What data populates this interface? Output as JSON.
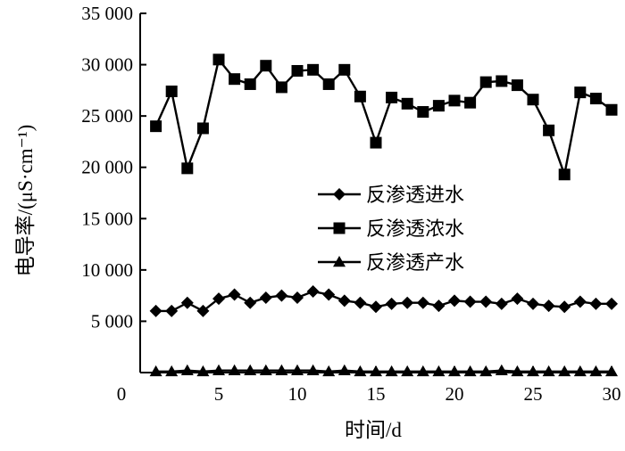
{
  "chart_data": {
    "type": "line",
    "title": "",
    "xlabel": "时间/d",
    "ylabel": "电导率/(μS·cm⁻¹)",
    "xlim": [
      0,
      30
    ],
    "ylim": [
      0,
      35000
    ],
    "x_ticks": [
      0,
      5,
      10,
      15,
      20,
      25,
      30
    ],
    "x_tick_labels": [
      "0",
      "5",
      "10",
      "15",
      "20",
      "25",
      "30"
    ],
    "y_ticks": [
      5000,
      10000,
      15000,
      20000,
      25000,
      30000,
      35000
    ],
    "y_tick_labels": [
      "5 000",
      "10 000",
      "15 000",
      "20 000",
      "25 000",
      "30 000",
      "35 000"
    ],
    "grid": false,
    "legend_position": "center-right",
    "x": [
      1,
      2,
      3,
      4,
      5,
      6,
      7,
      8,
      9,
      10,
      11,
      12,
      13,
      14,
      15,
      16,
      17,
      18,
      19,
      20,
      21,
      22,
      23,
      24,
      25,
      26,
      27,
      28,
      29,
      30
    ],
    "series": [
      {
        "name": "反渗透进水",
        "marker": "diamond",
        "values": [
          6000,
          6000,
          6800,
          6000,
          7200,
          7600,
          6800,
          7300,
          7500,
          7300,
          7900,
          7600,
          7000,
          6800,
          6400,
          6700,
          6800,
          6800,
          6500,
          7000,
          6900,
          6900,
          6700,
          7200,
          6700,
          6500,
          6400,
          6900,
          6700,
          6700
        ]
      },
      {
        "name": "反渗透浓水",
        "marker": "square",
        "values": [
          24000,
          27400,
          19900,
          23800,
          30500,
          28600,
          28100,
          29900,
          27800,
          29400,
          29500,
          28100,
          29500,
          26900,
          22400,
          26800,
          26200,
          25400,
          26000,
          26500,
          26300,
          28300,
          28400,
          28000,
          26600,
          23600,
          19300,
          27300,
          26700,
          25600
        ]
      },
      {
        "name": "反渗透产水",
        "marker": "triangle",
        "values": [
          100,
          100,
          200,
          100,
          200,
          200,
          200,
          200,
          200,
          200,
          200,
          100,
          200,
          100,
          100,
          100,
          100,
          100,
          100,
          100,
          100,
          100,
          200,
          100,
          100,
          100,
          100,
          100,
          100,
          100
        ]
      }
    ]
  }
}
